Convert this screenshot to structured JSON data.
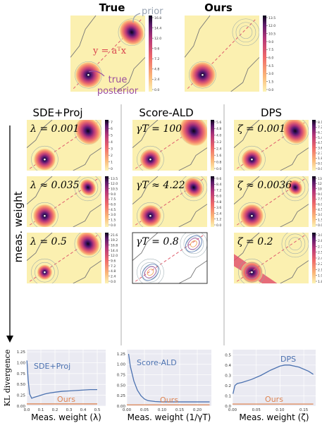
{
  "chart_data": [
    {
      "type": "heatmap",
      "title": "True",
      "colorbar_ticks": [
        "16.8",
        "14.4",
        "12.0",
        "9.6",
        "7.2",
        "4.8",
        "2.4",
        "0.0"
      ],
      "annotations": {
        "prior": "prior",
        "equation": "y = aᵀx",
        "posterior_line1": "true",
        "posterior_line2": "posterior"
      }
    },
    {
      "type": "heatmap",
      "title": "Ours",
      "colorbar_ticks": [
        "13.5",
        "12.0",
        "10.5",
        "9.0",
        "7.5",
        "6.0",
        "4.5",
        "3.0",
        "1.5",
        "0.0"
      ]
    },
    {
      "type": "heatmap",
      "column_title": "SDE+Proj",
      "panels": [
        {
          "label": "λ = 0.001",
          "colorbar_ticks": [
            "7",
            "6",
            "5",
            "4",
            "3",
            "2",
            "1",
            "0"
          ]
        },
        {
          "label": "λ ≈ 0.035",
          "colorbar_ticks": [
            "13.5",
            "12.0",
            "10.5",
            "9.0",
            "7.5",
            "6.0",
            "4.5",
            "3.0",
            "1.5",
            "0.0"
          ]
        },
        {
          "label": "λ = 0.5",
          "colorbar_ticks": [
            "21.6",
            "19.2",
            "16.8",
            "14.4",
            "12.0",
            "9.6",
            "7.2",
            "4.8",
            "2.4",
            "0.0"
          ]
        }
      ]
    },
    {
      "type": "heatmap",
      "column_title": "Score-ALD",
      "panels": [
        {
          "label": "γT = 100",
          "colorbar_ticks": [
            "5.6",
            "4.8",
            "4.0",
            "3.2",
            "2.4",
            "1.6",
            "0.8",
            "0.0"
          ]
        },
        {
          "label": "γT ≈ 4.22",
          "colorbar_ticks": [
            "9.6",
            "8.4",
            "7.2",
            "6.0",
            "4.8",
            "3.6",
            "2.4",
            "1.2",
            "0.0"
          ]
        },
        {
          "label": "γT = 0.8",
          "colorbar_ticks": []
        }
      ]
    },
    {
      "type": "heatmap",
      "column_title": "DPS",
      "panels": [
        {
          "label": "ζ = 0.001",
          "colorbar_ticks": [
            "8.1",
            "7.2",
            "6.3",
            "5.4",
            "4.5",
            "3.6",
            "2.7",
            "1.8",
            "0.9",
            "0.0"
          ]
        },
        {
          "label": "ζ ≈ 0.0036",
          "colorbar_ticks": [
            "13.5",
            "12.0",
            "10.5",
            "9.0",
            "7.5",
            "6.0",
            "4.5",
            "3.0",
            "1.5",
            "0.0"
          ]
        },
        {
          "label": "ζ = 0.2",
          "colorbar_ticks": [
            "3.00",
            "2.85",
            "2.70",
            "2.55",
            "2.40",
            "2.25",
            "2.10",
            "1.95",
            "1.80"
          ]
        }
      ]
    },
    {
      "type": "line",
      "ylabel": "KL divergence",
      "xlabel": "Meas. weight (λ)",
      "xlim": [
        0,
        0.56
      ],
      "ylim": [
        0,
        1.3
      ],
      "xticks": [
        "0.0",
        "0.1",
        "0.2",
        "0.3",
        "0.4",
        "0.5"
      ],
      "yticks": [
        "0.00",
        "0.25",
        "0.50",
        "0.75",
        "1.00",
        "1.25"
      ],
      "series": [
        {
          "name": "SDE+Proj",
          "color": "#4c72b0",
          "x": [
            0.001,
            0.01,
            0.02,
            0.035,
            0.05,
            0.07,
            0.1,
            0.13,
            0.16,
            0.2,
            0.25,
            0.3,
            0.35,
            0.4,
            0.45,
            0.5
          ],
          "y": [
            1.05,
            0.6,
            0.28,
            0.18,
            0.2,
            0.22,
            0.25,
            0.28,
            0.3,
            0.32,
            0.34,
            0.35,
            0.36,
            0.37,
            0.38,
            0.38
          ]
        },
        {
          "name": "Ours",
          "color": "#dd8452",
          "x": [
            0.0,
            0.5
          ],
          "y": [
            0.05,
            0.05
          ]
        }
      ]
    },
    {
      "type": "line",
      "xlabel": "Meas. weight (1/γT)",
      "xlim": [
        0,
        0.24
      ],
      "ylim": [
        0,
        1.35
      ],
      "xticks": [
        "0.00",
        "0.05",
        "0.10",
        "0.15",
        "0.20"
      ],
      "yticks": [
        "0.00",
        "0.25",
        "0.50",
        "0.75",
        "1.00",
        "1.25"
      ],
      "series": [
        {
          "name": "Score-ALD",
          "color": "#4c72b0",
          "x": [
            0.005,
            0.01,
            0.02,
            0.03,
            0.04,
            0.05,
            0.06,
            0.08,
            0.1,
            0.12,
            0.15,
            0.2,
            0.235
          ],
          "y": [
            1.25,
            0.95,
            0.6,
            0.38,
            0.25,
            0.17,
            0.13,
            0.11,
            0.1,
            0.1,
            0.1,
            0.1,
            0.1
          ]
        },
        {
          "name": "Ours",
          "color": "#dd8452",
          "x": [
            0.0,
            0.235
          ],
          "y": [
            0.03,
            0.03
          ]
        }
      ]
    },
    {
      "type": "line",
      "xlabel": "Meas. weight (ζ)",
      "xlim": [
        0,
        0.175
      ],
      "ylim": [
        0,
        0.55
      ],
      "xticks": [
        "0.00",
        "0.05",
        "0.10",
        "0.15"
      ],
      "yticks": [
        "0.0",
        "0.1",
        "0.2",
        "0.3",
        "0.4",
        "0.5"
      ],
      "series": [
        {
          "name": "DPS",
          "color": "#4c72b0",
          "x": [
            0.001,
            0.005,
            0.01,
            0.02,
            0.04,
            0.06,
            0.08,
            0.1,
            0.11,
            0.12,
            0.14,
            0.16,
            0.17
          ],
          "y": [
            0.12,
            0.2,
            0.22,
            0.23,
            0.26,
            0.3,
            0.35,
            0.39,
            0.4,
            0.4,
            0.38,
            0.34,
            0.31
          ]
        },
        {
          "name": "Ours",
          "color": "#dd8452",
          "x": [
            0.0,
            0.17
          ],
          "y": [
            0.02,
            0.02
          ]
        }
      ]
    }
  ],
  "colors": {
    "background": "#fbf0b0",
    "line_chart_bg": "#eaeaf2",
    "series_blue": "#4c72b0",
    "series_orange": "#dd8452",
    "ours_label": "#dd8452",
    "dashed_line": "#e06070",
    "annotation_purple": "#9b4f9e",
    "prior_gray": "#9aa4b2"
  },
  "labels": {
    "y_arrow_label": "meas. weight"
  }
}
